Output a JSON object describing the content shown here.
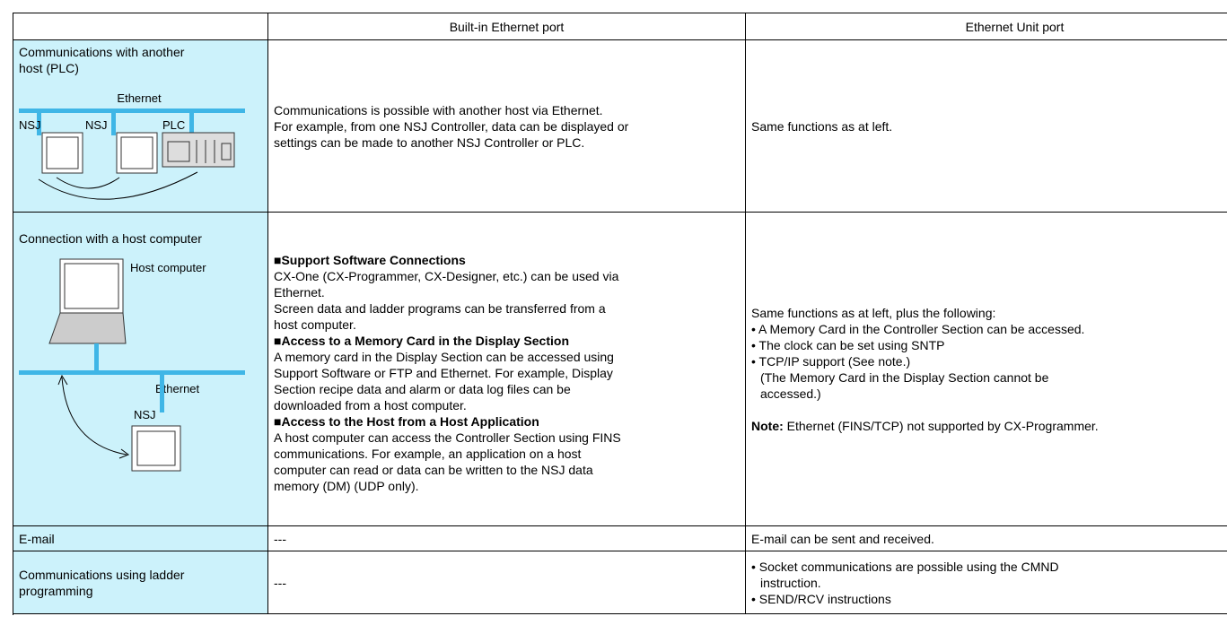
{
  "table": {
    "columns": [
      "Built-in Ethernet port",
      "Ethernet Unit port"
    ],
    "rows": [
      {
        "label": [
          "Communications with another",
          "host (PLC)"
        ],
        "diagram": {
          "network": "Ethernet",
          "nodes": [
            "NSJ",
            "NSJ",
            "PLC"
          ]
        },
        "builtin": [
          "Communications is possible with another host via Ethernet.",
          "For example, from one NSJ Controller, data can be displayed or",
          "settings can be made to another NSJ Controller or PLC."
        ],
        "unit": [
          "Same functions as at left."
        ]
      },
      {
        "label": [
          "Connection with a host computer"
        ],
        "diagram": {
          "host": "Host computer",
          "network": "Ethernet",
          "nodes": [
            "NSJ"
          ]
        },
        "builtin": [
          {
            "heading": "■Support Software Connections",
            "lines": [
              "CX-One (CX-Programmer, CX-Designer, etc.) can be used via",
              "Ethernet.",
              "Screen data and ladder programs can be transferred from a",
              "host computer."
            ]
          },
          {
            "heading": "■Access to a Memory Card in the Display Section",
            "lines": [
              "A memory card in the Display Section can be accessed using",
              "Support Software or FTP and Ethernet. For example, Display",
              "Section recipe data and alarm or data log files can be",
              "downloaded from a host computer."
            ]
          },
          {
            "heading": "■Access to the Host from a Host Application",
            "lines": [
              "A host computer can access the Controller Section using FINS",
              "communications. For example, an application on a host",
              "computer can read or data can be written to the NSJ data",
              "memory (DM) (UDP only)."
            ]
          }
        ],
        "unit": {
          "intro": "Same functions as at left, plus the following:",
          "bullets": [
            [
              "• A Memory Card in the Controller Section can be accessed."
            ],
            [
              "• The clock can be set using SNTP"
            ],
            [
              "• TCP/IP support (See note.)",
              "(The Memory Card in the Display Section cannot be",
              "accessed.)"
            ]
          ],
          "note_label": "Note:",
          "note": "Ethernet (FINS/TCP) not supported by CX-Programmer."
        }
      },
      {
        "label": [
          "E-mail"
        ],
        "builtin": [
          "---"
        ],
        "unit": [
          "E-mail can be sent and received."
        ]
      },
      {
        "label": [
          "Communications using ladder",
          "programming"
        ],
        "builtin": [
          "---"
        ],
        "unit": {
          "bullets": [
            [
              "• Socket communications are possible using the CMND",
              "instruction."
            ],
            [
              "• SEND/RCV instructions"
            ]
          ]
        }
      }
    ]
  }
}
